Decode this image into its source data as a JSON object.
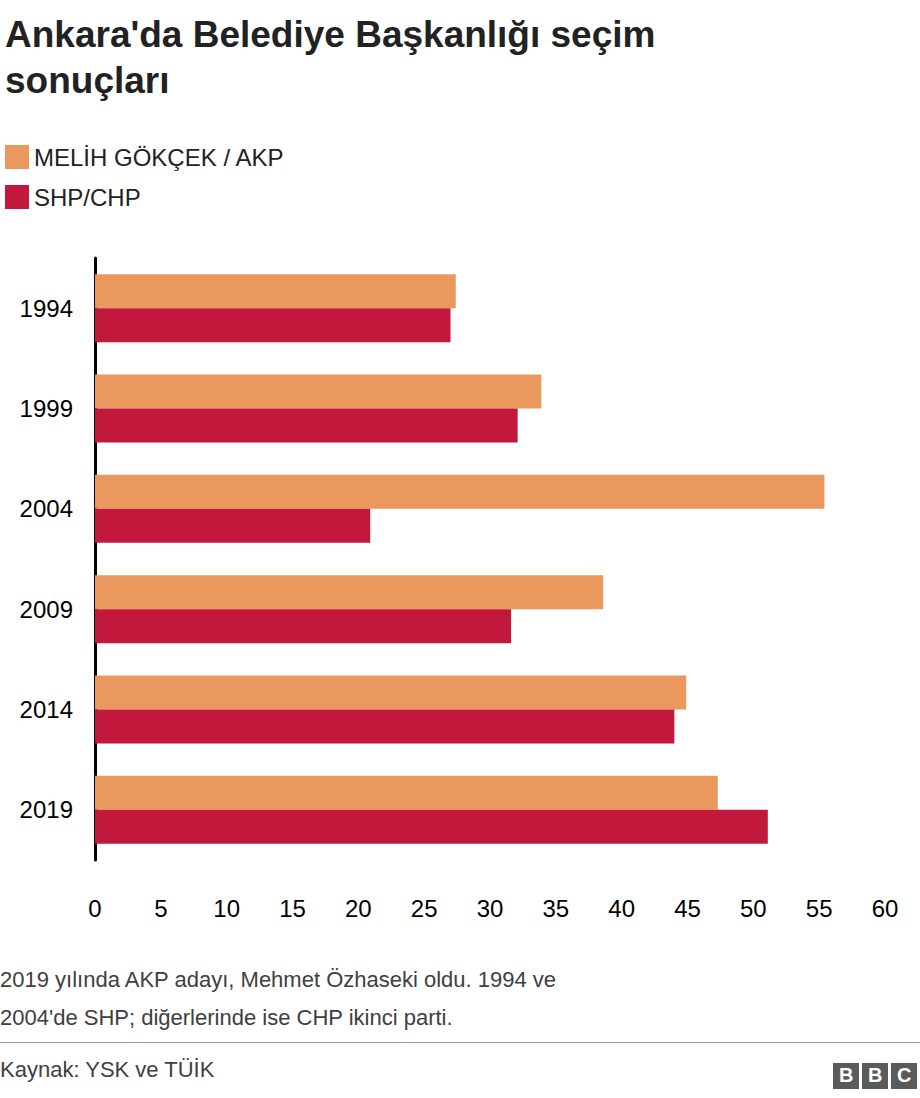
{
  "chart_data": {
    "type": "bar",
    "orientation": "horizontal",
    "title": "Ankara'da Belediye Başkanlığı seçim sonuçları",
    "categories": [
      "1994",
      "1999",
      "2004",
      "2009",
      "2014",
      "2019"
    ],
    "series": [
      {
        "name": "MELİH GÖKÇEK / AKP",
        "color": "#eb985e",
        "values": [
          27.4,
          33.9,
          55.4,
          38.6,
          44.9,
          47.3
        ]
      },
      {
        "name": "SHP/CHP",
        "color": "#c2183c",
        "values": [
          27.0,
          32.1,
          20.9,
          31.6,
          44.0,
          51.1
        ]
      }
    ],
    "xlim": [
      0,
      60
    ],
    "xticks": [
      0,
      5,
      10,
      15,
      20,
      25,
      30,
      35,
      40,
      45,
      50,
      55,
      60
    ],
    "grid": false,
    "legend": "top-left",
    "notes": [
      "2019 yılında AKP adayı, Mehmet Özhaseki oldu. 1994 ve",
      "2004'de SHP; diğerlerinde ise CHP ikinci parti."
    ],
    "source": "Kaynak: YSK ve TÜİK",
    "logo": "BBC"
  }
}
